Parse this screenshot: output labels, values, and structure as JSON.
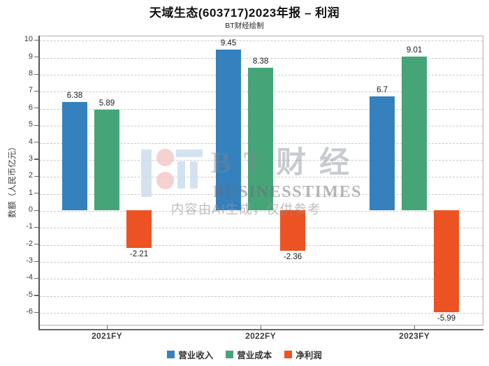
{
  "header": {
    "title": "天域生态(603717)2023年报 – 利润",
    "subtitle": "BT财经绘制"
  },
  "chart_data": {
    "type": "bar",
    "categories": [
      "2021FY",
      "2022FY",
      "2023FY"
    ],
    "series": [
      {
        "name": "营业收入",
        "color": "#3581bd",
        "values": [
          6.38,
          9.45,
          6.7
        ]
      },
      {
        "name": "营业成本",
        "color": "#46a578",
        "values": [
          5.89,
          8.38,
          9.01
        ]
      },
      {
        "name": "净利润",
        "color": "#ed5223",
        "values": [
          -2.21,
          -2.36,
          -5.99
        ]
      }
    ],
    "ylabel": "数额（人民币亿元）",
    "ylim": [
      -6.77,
      10.26
    ],
    "yticks": [
      10,
      9,
      8,
      7,
      6,
      5,
      4,
      3,
      2,
      1,
      0,
      -1,
      -2,
      -3,
      -4,
      -5,
      -6
    ],
    "grid": "horizontal-dashed",
    "legend_position": "bottom",
    "value_labels": true
  },
  "watermark": {
    "brand_cjk": "B T 财 经",
    "brand_en": "BUSINESSTIMES",
    "notice": "内容由AI生成，仅供参考",
    "logo_blue": "#cdddee",
    "logo_pink": "#f4cac8"
  }
}
